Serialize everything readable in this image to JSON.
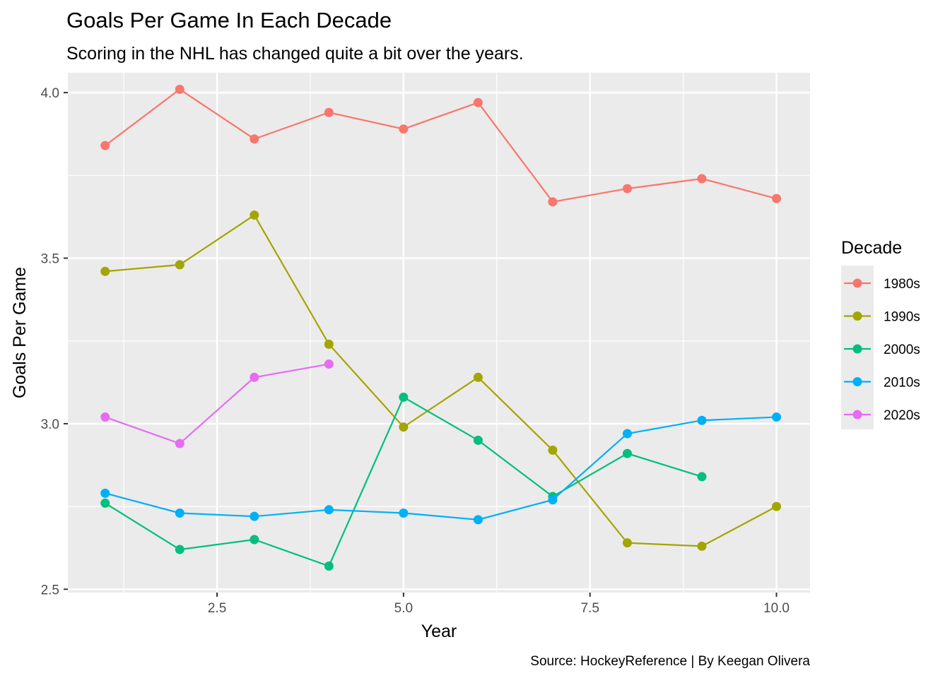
{
  "chart_data": {
    "type": "line",
    "title": "Goals Per Game In Each Decade",
    "subtitle": "Scoring in the NHL has changed quite a bit over the years.",
    "xlabel": "Year",
    "ylabel": "Goals Per Game",
    "caption": "Source: HockeyReference | By Keegan Olivera",
    "xlim": [
      0.5,
      10.45
    ],
    "ylim": [
      2.49,
      4.06
    ],
    "x_ticks": [
      2.5,
      5.0,
      7.5,
      10.0
    ],
    "x_tick_labels": [
      "2.5",
      "5.0",
      "7.5",
      "10.0"
    ],
    "y_ticks": [
      2.5,
      3.0,
      3.5,
      4.0
    ],
    "y_tick_labels": [
      "2.5",
      "3.0",
      "3.5",
      "4.0"
    ],
    "grid": true,
    "legend": {
      "title": "Decade",
      "position": "right"
    },
    "series": [
      {
        "name": "1980s",
        "color": "#F8766D",
        "x": [
          1,
          2,
          3,
          4,
          5,
          6,
          7,
          8,
          9,
          10
        ],
        "y": [
          3.84,
          4.01,
          3.86,
          3.94,
          3.89,
          3.97,
          3.67,
          3.71,
          3.74,
          3.68
        ]
      },
      {
        "name": "1990s",
        "color": "#A3A500",
        "x": [
          1,
          2,
          3,
          4,
          5,
          6,
          7,
          8,
          9,
          10
        ],
        "y": [
          3.46,
          3.48,
          3.63,
          3.24,
          2.99,
          3.14,
          2.92,
          2.64,
          2.63,
          2.75
        ]
      },
      {
        "name": "2000s",
        "color": "#00BF7D",
        "x": [
          1,
          2,
          3,
          4,
          5,
          6,
          7,
          8,
          9
        ],
        "y": [
          2.76,
          2.62,
          2.65,
          2.57,
          3.08,
          2.95,
          2.78,
          2.91,
          2.84
        ]
      },
      {
        "name": "2010s",
        "color": "#00B0F6",
        "x": [
          1,
          2,
          3,
          4,
          5,
          6,
          7,
          8,
          9,
          10
        ],
        "y": [
          2.79,
          2.73,
          2.72,
          2.74,
          2.73,
          2.71,
          2.77,
          2.97,
          3.01,
          3.02
        ]
      },
      {
        "name": "2020s",
        "color": "#E76BF3",
        "x": [
          1,
          2,
          3,
          4
        ],
        "y": [
          3.02,
          2.94,
          3.14,
          3.18
        ]
      }
    ]
  }
}
